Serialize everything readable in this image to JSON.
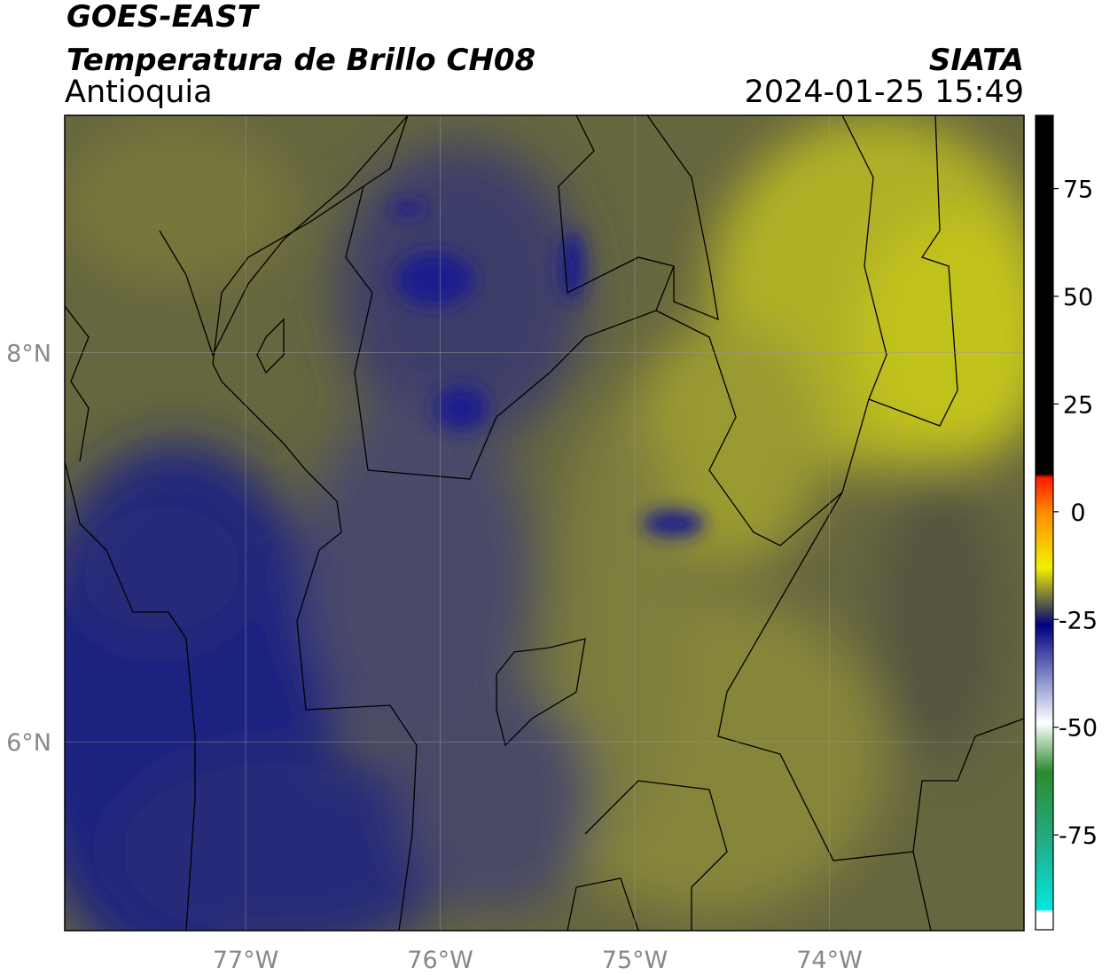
{
  "header": {
    "title": "GOES-EAST",
    "subtitle": "Temperatura de Brillo CH08",
    "region": "Antioquia",
    "source": "SIATA",
    "timestamp": "2024-01-25 15:49"
  },
  "map": {
    "xlim": [
      -77.93,
      -73.0
    ],
    "ylim": [
      5.03,
      9.22
    ],
    "xticks": [
      {
        "value": -77,
        "label": "77°W"
      },
      {
        "value": -76,
        "label": "76°W"
      },
      {
        "value": -75,
        "label": "75°W"
      },
      {
        "value": -74,
        "label": "74°W"
      }
    ],
    "yticks": [
      {
        "value": 8,
        "label": "8°N"
      },
      {
        "value": 6,
        "label": "6°N"
      }
    ],
    "grid": true
  },
  "colorbar": {
    "lim": [
      -97,
      92
    ],
    "ticks": [
      75,
      50,
      25,
      0,
      -25,
      -50,
      -75
    ]
  }
}
